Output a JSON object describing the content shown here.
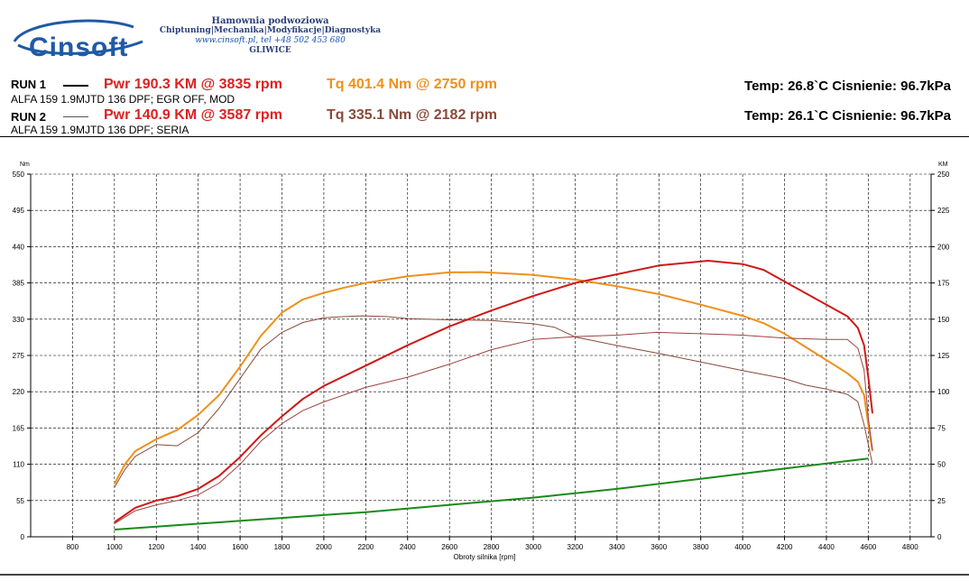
{
  "header": {
    "logo_text": "Cinsoft",
    "company": {
      "line1": "Hamownia podwoziowa",
      "line2": "Chiptuning|Mechanika|Modyfikacje|Diagnostyka",
      "line3": "www.cinsoft.pl, tel +48 502 453 680",
      "line4": "GLIWICE"
    }
  },
  "runs": [
    {
      "label": "RUN 1",
      "desc": "ALFA 159 1.9MJTD 136 DPF; EGR OFF, MOD",
      "pwr": "Pwr  190.3 KM @ 3835 rpm",
      "tq": "Tq 401.4 Nm @ 2750 rpm",
      "env": "Temp: 26.8`C   Cisnienie: 96.7kPa",
      "line_style": "thick",
      "pwr_color": "#e02020",
      "tq_color": "#f0901a"
    },
    {
      "label": "RUN 2",
      "desc": "ALFA 159 1.9MJTD 136 DPF; SERIA",
      "pwr": "Pwr  140.9 KM @ 3587 rpm",
      "tq": "Tq 335.1 Nm @ 2182 rpm",
      "env": "Temp: 26.1`C   Cisnienie: 96.7kPa",
      "line_style": "thin",
      "pwr_color": "#e02020",
      "tq_color": "#8a4a3a"
    }
  ],
  "chart_data": {
    "type": "line",
    "xlabel": "Obroty silnika [rpm]",
    "ylabel_left": "Nm",
    "ylabel_right": "KM",
    "xlim": [
      600,
      4900
    ],
    "x_ticks": [
      800,
      1000,
      1200,
      1400,
      1600,
      1800,
      2000,
      2200,
      2400,
      2600,
      2800,
      3000,
      3200,
      3400,
      3600,
      3800,
      4000,
      4200,
      4400,
      4600,
      4800
    ],
    "ylim_left": [
      0,
      550
    ],
    "y_ticks_left": [
      0,
      55,
      110,
      165,
      220,
      275,
      330,
      385,
      440,
      495,
      550
    ],
    "ylim_right": [
      0,
      250
    ],
    "y_ticks_right": [
      0,
      25,
      50,
      75,
      100,
      125,
      150,
      175,
      200,
      225,
      250
    ],
    "grid": true,
    "series": [
      {
        "axis": "left",
        "color": "#f0901a",
        "width": 2,
        "points": [
          [
            1000,
            80
          ],
          [
            1050,
            110
          ],
          [
            1100,
            130
          ],
          [
            1200,
            148
          ],
          [
            1300,
            162
          ],
          [
            1400,
            185
          ],
          [
            1500,
            215
          ],
          [
            1600,
            258
          ],
          [
            1700,
            305
          ],
          [
            1800,
            340
          ],
          [
            1900,
            360
          ],
          [
            2000,
            370
          ],
          [
            2100,
            378
          ],
          [
            2200,
            385
          ],
          [
            2400,
            395
          ],
          [
            2600,
            401
          ],
          [
            2750,
            401.4
          ],
          [
            2900,
            399
          ],
          [
            3000,
            397
          ],
          [
            3200,
            390
          ],
          [
            3400,
            380
          ],
          [
            3600,
            368
          ],
          [
            3800,
            352
          ],
          [
            4000,
            335
          ],
          [
            4100,
            324
          ],
          [
            4200,
            308
          ],
          [
            4300,
            288
          ],
          [
            4400,
            268
          ],
          [
            4500,
            248
          ],
          [
            4550,
            235
          ],
          [
            4580,
            215
          ],
          [
            4600,
            170
          ],
          [
            4620,
            130
          ]
        ]
      },
      {
        "axis": "left",
        "color": "#8a4a3a",
        "width": 1,
        "points": [
          [
            1000,
            75
          ],
          [
            1050,
            102
          ],
          [
            1100,
            122
          ],
          [
            1200,
            140
          ],
          [
            1300,
            138
          ],
          [
            1400,
            158
          ],
          [
            1500,
            195
          ],
          [
            1600,
            240
          ],
          [
            1700,
            285
          ],
          [
            1800,
            310
          ],
          [
            1900,
            325
          ],
          [
            2000,
            332
          ],
          [
            2100,
            334
          ],
          [
            2182,
            335.1
          ],
          [
            2300,
            334
          ],
          [
            2400,
            331
          ],
          [
            2600,
            329
          ],
          [
            2800,
            328
          ],
          [
            3000,
            323
          ],
          [
            3100,
            318
          ],
          [
            3200,
            303
          ],
          [
            3400,
            290
          ],
          [
            3600,
            278
          ],
          [
            3800,
            265
          ],
          [
            4000,
            252
          ],
          [
            4200,
            240
          ],
          [
            4300,
            230
          ],
          [
            4400,
            224
          ],
          [
            4500,
            216
          ],
          [
            4550,
            205
          ],
          [
            4580,
            170
          ],
          [
            4600,
            140
          ],
          [
            4620,
            110
          ]
        ]
      },
      {
        "axis": "right",
        "color": "#d01818",
        "width": 2,
        "points": [
          [
            1000,
            10
          ],
          [
            1100,
            20
          ],
          [
            1200,
            25
          ],
          [
            1300,
            28
          ],
          [
            1400,
            33
          ],
          [
            1500,
            42
          ],
          [
            1600,
            55
          ],
          [
            1700,
            70
          ],
          [
            1800,
            83
          ],
          [
            1900,
            95
          ],
          [
            2000,
            104
          ],
          [
            2200,
            118
          ],
          [
            2400,
            132
          ],
          [
            2600,
            145
          ],
          [
            2800,
            156
          ],
          [
            3000,
            166
          ],
          [
            3200,
            175
          ],
          [
            3400,
            181
          ],
          [
            3600,
            187
          ],
          [
            3835,
            190.3
          ],
          [
            4000,
            188
          ],
          [
            4100,
            184
          ],
          [
            4200,
            176
          ],
          [
            4300,
            168
          ],
          [
            4400,
            160
          ],
          [
            4500,
            152
          ],
          [
            4550,
            144
          ],
          [
            4580,
            132
          ],
          [
            4600,
            110
          ],
          [
            4620,
            85
          ]
        ]
      },
      {
        "axis": "right",
        "color": "#a04040",
        "width": 1,
        "points": [
          [
            1000,
            9
          ],
          [
            1100,
            18
          ],
          [
            1200,
            22
          ],
          [
            1300,
            25
          ],
          [
            1400,
            29
          ],
          [
            1500,
            37
          ],
          [
            1600,
            50
          ],
          [
            1700,
            66
          ],
          [
            1800,
            78
          ],
          [
            1900,
            87
          ],
          [
            2000,
            93
          ],
          [
            2200,
            103
          ],
          [
            2400,
            110
          ],
          [
            2600,
            119
          ],
          [
            2800,
            129
          ],
          [
            3000,
            136
          ],
          [
            3200,
            138
          ],
          [
            3400,
            139
          ],
          [
            3587,
            140.9
          ],
          [
            3800,
            140
          ],
          [
            4000,
            139
          ],
          [
            4200,
            137
          ],
          [
            4400,
            136
          ],
          [
            4500,
            136
          ],
          [
            4550,
            130
          ],
          [
            4580,
            115
          ],
          [
            4600,
            82
          ],
          [
            4620,
            60
          ]
        ]
      },
      {
        "axis": "right",
        "color": "#1a8a1a",
        "width": 2,
        "points": [
          [
            1000,
            5
          ],
          [
            1400,
            9
          ],
          [
            1800,
            13
          ],
          [
            2200,
            17
          ],
          [
            2600,
            22
          ],
          [
            3000,
            27
          ],
          [
            3400,
            33
          ],
          [
            3800,
            40
          ],
          [
            4200,
            47
          ],
          [
            4600,
            54
          ]
        ]
      }
    ]
  }
}
